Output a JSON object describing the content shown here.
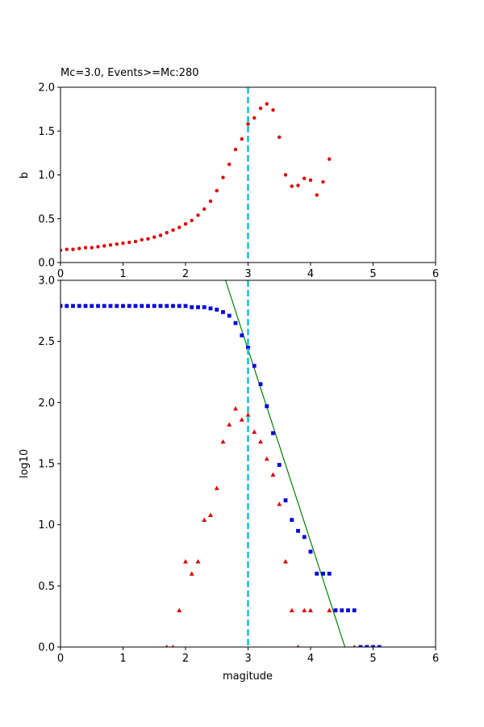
{
  "chart_data": [
    {
      "type": "scatter",
      "title": "Mc=3.0, Events>=Mc:280",
      "xlabel": "",
      "ylabel": "b",
      "xlim": [
        0,
        6
      ],
      "ylim": [
        0,
        2
      ],
      "xticks": [
        0,
        1,
        2,
        3,
        4,
        5,
        6
      ],
      "yticks": [
        0.0,
        0.5,
        1.0,
        1.5,
        2.0
      ],
      "xtick_labels": [
        "0",
        "1",
        "2",
        "3",
        "4",
        "5",
        "6"
      ],
      "ytick_labels": [
        "0.0",
        "0.5",
        "1.0",
        "1.5",
        "2.0"
      ],
      "grid": false,
      "vline": {
        "x": 3.0,
        "color": "#17becf",
        "style": "dashed"
      },
      "series": [
        {
          "marker": "circle",
          "color": "#e00000",
          "x": [
            0.0,
            0.1,
            0.2,
            0.3,
            0.4,
            0.5,
            0.6,
            0.7,
            0.8,
            0.9,
            1.0,
            1.1,
            1.2,
            1.3,
            1.4,
            1.5,
            1.6,
            1.7,
            1.8,
            1.9,
            2.0,
            2.1,
            2.2,
            2.3,
            2.4,
            2.5,
            2.6,
            2.7,
            2.8,
            2.9,
            3.0,
            3.1,
            3.2,
            3.3,
            3.4,
            3.5,
            3.6,
            3.7,
            3.8,
            3.9,
            4.0,
            4.1,
            4.2,
            4.3
          ],
          "y": [
            0.14,
            0.15,
            0.15,
            0.16,
            0.17,
            0.17,
            0.18,
            0.19,
            0.2,
            0.21,
            0.22,
            0.23,
            0.24,
            0.26,
            0.27,
            0.29,
            0.31,
            0.34,
            0.37,
            0.4,
            0.44,
            0.48,
            0.54,
            0.61,
            0.7,
            0.82,
            0.97,
            1.12,
            1.29,
            1.41,
            1.58,
            1.65,
            1.76,
            1.81,
            1.74,
            1.43,
            1.0,
            0.87,
            0.88,
            0.96,
            0.94,
            0.77,
            0.92,
            1.18
          ]
        }
      ]
    },
    {
      "type": "scatter",
      "title": "",
      "xlabel": "magitude",
      "ylabel": "log10",
      "xlim": [
        0,
        6
      ],
      "ylim": [
        0,
        3
      ],
      "xticks": [
        0,
        1,
        2,
        3,
        4,
        5,
        6
      ],
      "yticks": [
        0.0,
        0.5,
        1.0,
        1.5,
        2.0,
        2.5,
        3.0
      ],
      "xtick_labels": [
        "0",
        "1",
        "2",
        "3",
        "4",
        "5",
        "6"
      ],
      "ytick_labels": [
        "0.0",
        "0.5",
        "1.0",
        "1.5",
        "2.0",
        "2.5",
        "3.0"
      ],
      "grid": false,
      "vline": {
        "x": 3.0,
        "color": "#17becf",
        "style": "dashed"
      },
      "fit_line": {
        "color": "#008000",
        "x": [
          2.64,
          4.55
        ],
        "y": [
          3.0,
          0.0
        ]
      },
      "series": [
        {
          "marker": "square",
          "color": "#0000e0",
          "x": [
            0.0,
            0.1,
            0.2,
            0.3,
            0.4,
            0.5,
            0.6,
            0.7,
            0.8,
            0.9,
            1.0,
            1.1,
            1.2,
            1.3,
            1.4,
            1.5,
            1.6,
            1.7,
            1.8,
            1.9,
            2.0,
            2.1,
            2.2,
            2.3,
            2.4,
            2.5,
            2.6,
            2.7,
            2.8,
            2.9,
            3.0,
            3.1,
            3.2,
            3.3,
            3.4,
            3.5,
            3.6,
            3.7,
            3.8,
            3.9,
            4.0,
            4.1,
            4.2,
            4.3,
            4.4,
            4.5,
            4.6,
            4.7,
            4.8,
            4.9,
            5.0,
            5.1
          ],
          "y": [
            2.79,
            2.79,
            2.79,
            2.79,
            2.79,
            2.79,
            2.79,
            2.79,
            2.79,
            2.79,
            2.79,
            2.79,
            2.79,
            2.79,
            2.79,
            2.79,
            2.79,
            2.79,
            2.79,
            2.79,
            2.79,
            2.78,
            2.78,
            2.78,
            2.77,
            2.76,
            2.74,
            2.71,
            2.65,
            2.55,
            2.45,
            2.3,
            2.15,
            1.97,
            1.75,
            1.49,
            1.2,
            1.04,
            0.95,
            0.9,
            0.78,
            0.6,
            0.6,
            0.6,
            0.3,
            0.3,
            0.3,
            0.3,
            0.0,
            0.0,
            0.0,
            0.0
          ]
        },
        {
          "marker": "triangle",
          "color": "#e00000",
          "x": [
            1.7,
            1.8,
            1.9,
            2.0,
            2.1,
            2.2,
            2.3,
            2.4,
            2.5,
            2.6,
            2.7,
            2.8,
            2.9,
            3.0,
            3.1,
            3.2,
            3.3,
            3.4,
            3.5,
            3.6,
            3.7,
            3.8,
            3.9,
            4.0,
            4.3,
            4.7
          ],
          "y": [
            0.0,
            0.0,
            0.3,
            0.7,
            0.6,
            0.7,
            1.04,
            1.08,
            1.3,
            1.68,
            1.82,
            1.95,
            1.86,
            1.9,
            1.76,
            1.68,
            1.54,
            1.41,
            1.17,
            0.7,
            0.3,
            0.0,
            0.3,
            0.3,
            0.3,
            0.0
          ]
        }
      ]
    }
  ]
}
